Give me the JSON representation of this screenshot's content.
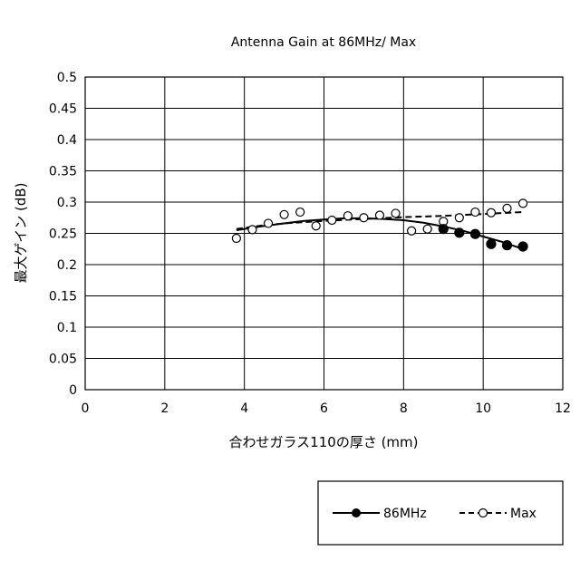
{
  "chart_data": {
    "type": "scatter",
    "title": "Antenna Gain at 86MHz/ Max",
    "xlabel": "合わせガラス110の厚さ (mm)",
    "ylabel": "最大ゲイン (dB)",
    "xlim": [
      0,
      12
    ],
    "ylim": [
      0,
      0.5
    ],
    "x_ticks": [
      "0",
      "2",
      "4",
      "6",
      "8",
      "10",
      "12"
    ],
    "y_ticks": [
      "0",
      "0.05",
      "0.1",
      "0.15",
      "0.2",
      "0.25",
      "0.3",
      "0.35",
      "0.4",
      "0.45",
      "0.5"
    ],
    "grid": true,
    "legend_position": "bottom-right",
    "series": [
      {
        "name": "86MHz",
        "marker": "filled-circle",
        "line": "solid",
        "color": "#000000",
        "x": [
          9.0,
          9.4,
          9.8,
          10.2,
          10.6,
          11.0
        ],
        "y": [
          0.257,
          0.251,
          0.249,
          0.233,
          0.231,
          0.229
        ],
        "trend_x": [
          3.8,
          4.5,
          5.0,
          5.5,
          6.0,
          6.5,
          7.0,
          7.5,
          8.0,
          8.5,
          9.0,
          9.5,
          10.0,
          10.5,
          11.0
        ],
        "trend_y": [
          0.255,
          0.262,
          0.266,
          0.27,
          0.272,
          0.274,
          0.274,
          0.273,
          0.271,
          0.267,
          0.261,
          0.254,
          0.245,
          0.236,
          0.225
        ]
      },
      {
        "name": "Max",
        "marker": "open-circle",
        "line": "dashed",
        "color": "#000000",
        "x": [
          3.8,
          4.2,
          4.6,
          5.0,
          5.4,
          5.8,
          6.2,
          6.6,
          7.0,
          7.4,
          7.8,
          8.2,
          8.6,
          9.0,
          9.4,
          9.8,
          10.2,
          10.6,
          11.0
        ],
        "y": [
          0.242,
          0.256,
          0.266,
          0.28,
          0.284,
          0.262,
          0.271,
          0.278,
          0.275,
          0.279,
          0.282,
          0.254,
          0.257,
          0.269,
          0.275,
          0.284,
          0.283,
          0.29,
          0.298
        ],
        "trend_x": [
          3.8,
          4.5,
          5.0,
          6.0,
          7.0,
          8.0,
          9.0,
          10.0,
          11.0
        ],
        "trend_y": [
          0.257,
          0.263,
          0.266,
          0.27,
          0.273,
          0.276,
          0.278,
          0.281,
          0.284
        ]
      }
    ]
  }
}
